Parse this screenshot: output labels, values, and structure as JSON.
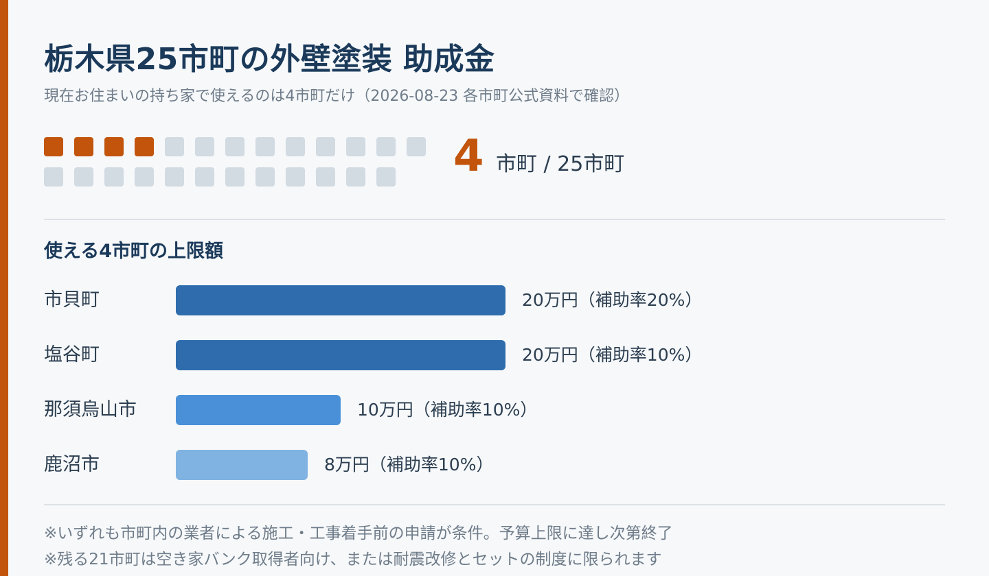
{
  "title": "栃木県25市町の外壁塗装 助成金",
  "subtitle": "現在お住まいの持ち家で使えるのは4市町だけ（2026-08-23 各市町公式資料で確認）",
  "summary": {
    "eligible_count": 4,
    "total_count": 25,
    "count_text": "4",
    "count_label": "市町 / 25市町"
  },
  "colors": {
    "accent": "#c2540c",
    "tile_on": "#c2540c",
    "tile_off": "#d2dae2",
    "bar_dark": "#2e6cad",
    "bar_mid": "#4a90d9",
    "bar_light": "#80b2e2"
  },
  "chart_data": {
    "type": "bar",
    "orientation": "horizontal",
    "title": "使える4市町の上限額",
    "categories": [
      "市貝町",
      "塩谷町",
      "那須烏山市",
      "鹿沼市"
    ],
    "values": [
      20,
      20,
      10,
      8
    ],
    "unit": "万円",
    "value_labels": [
      "20万円（補助率20%）",
      "20万円（補助率10%）",
      "10万円（補助率10%）",
      "8万円（補助率10%）"
    ],
    "bar_colors": [
      "#2e6cad",
      "#2e6cad",
      "#4a90d9",
      "#80b2e2"
    ],
    "xlim": [
      0,
      20
    ]
  },
  "notes": [
    "※いずれも市町内の業者による施工・工事着手前の申請が条件。予算上限に達し次第終了",
    "※残る21市町は空き家バンク取得者向け、または耐震改修とセットの制度に限られます"
  ]
}
